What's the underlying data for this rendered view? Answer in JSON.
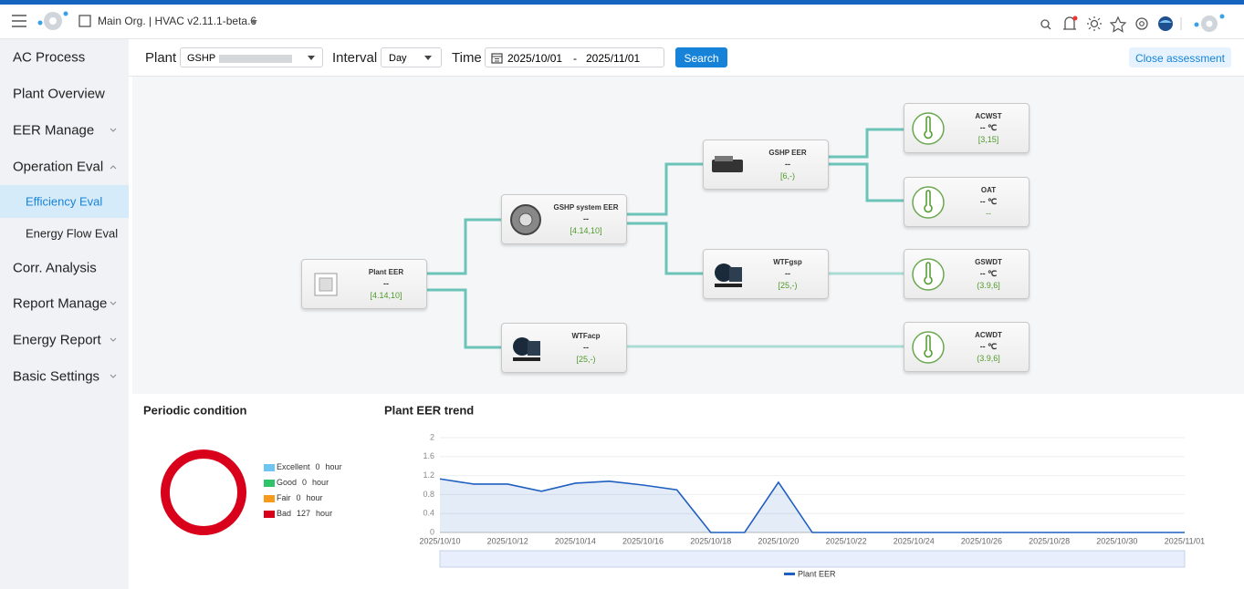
{
  "header": {
    "title": "Main Org. | HVAC v2.11.1-beta.6"
  },
  "sidebar": {
    "items": [
      "AC Process",
      "Plant Overview",
      "EER Manage",
      "Operation Eval",
      "Efficiency Eval",
      "Energy Flow Eval",
      "Corr. Analysis",
      "Report Manage",
      "Energy Report",
      "Basic Settings"
    ]
  },
  "toolbar": {
    "plant_label": "Plant",
    "plant_value": "GSHP",
    "interval_label": "Interval",
    "interval_value": "Day",
    "time_label": "Time",
    "start_date": "2025/10/01",
    "separator": "-",
    "end_date": "2025/11/01",
    "search": "Search",
    "close": "Close assessment"
  },
  "flow": {
    "nodes": [
      {
        "title": "Plant EER",
        "value": "--",
        "range": "[4.14,10]"
      },
      {
        "title": "GSHP system EER",
        "value": "--",
        "range": "[4.14,10]"
      },
      {
        "title": "WTFacp",
        "value": "--",
        "range": "[25,-)"
      },
      {
        "title": "GSHP EER",
        "value": "--",
        "range": "[6,-)"
      },
      {
        "title": "WTFgsp",
        "value": "--",
        "range": "[25,-)"
      },
      {
        "title": "ACWST",
        "value": "-- ℃",
        "range": "[3,15]"
      },
      {
        "title": "OAT",
        "value": "-- ℃",
        "range": "--"
      },
      {
        "title": "GSWDT",
        "value": "-- ℃",
        "range": "(3.9,6]"
      },
      {
        "title": "ACWDT",
        "value": "-- ℃",
        "range": "(3.9,6]"
      }
    ]
  },
  "chart_data": [
    {
      "type": "pie",
      "title": "Periodic condition",
      "categories": [
        "Excellent",
        "Good",
        "Fair",
        "Bad"
      ],
      "values": [
        0,
        0,
        0,
        127
      ],
      "unit": "hour",
      "colors": [
        "#6ec6f0",
        "#2fc36a",
        "#f79a1c",
        "#d9001b"
      ],
      "legend": "right"
    },
    {
      "type": "line",
      "title": "Plant EER trend",
      "categories": [
        "2025/10/10",
        null,
        "2025/10/12",
        null,
        "2025/10/14",
        null,
        "2025/10/16",
        null,
        "2025/10/18",
        null,
        "2025/10/20",
        null,
        "2025/10/22",
        null,
        "2025/10/24",
        null,
        "2025/10/26",
        null,
        "2025/10/28",
        null,
        "2025/10/30",
        null,
        "2025/11/01"
      ],
      "series": [
        {
          "name": "Plant EER",
          "color": "#1f5fbf",
          "values": [
            1.13,
            1.02,
            1.02,
            0.87,
            1.04,
            1.08,
            1.0,
            0.9,
            0,
            0,
            1.06,
            0,
            0,
            0,
            0,
            0,
            0,
            0,
            0,
            0,
            0,
            0,
            0
          ]
        }
      ],
      "ylim": [
        0,
        2
      ],
      "yticks": [
        0,
        0.4,
        0.8,
        1.2,
        1.6,
        2
      ],
      "grid": true,
      "legend": "bottom"
    }
  ]
}
